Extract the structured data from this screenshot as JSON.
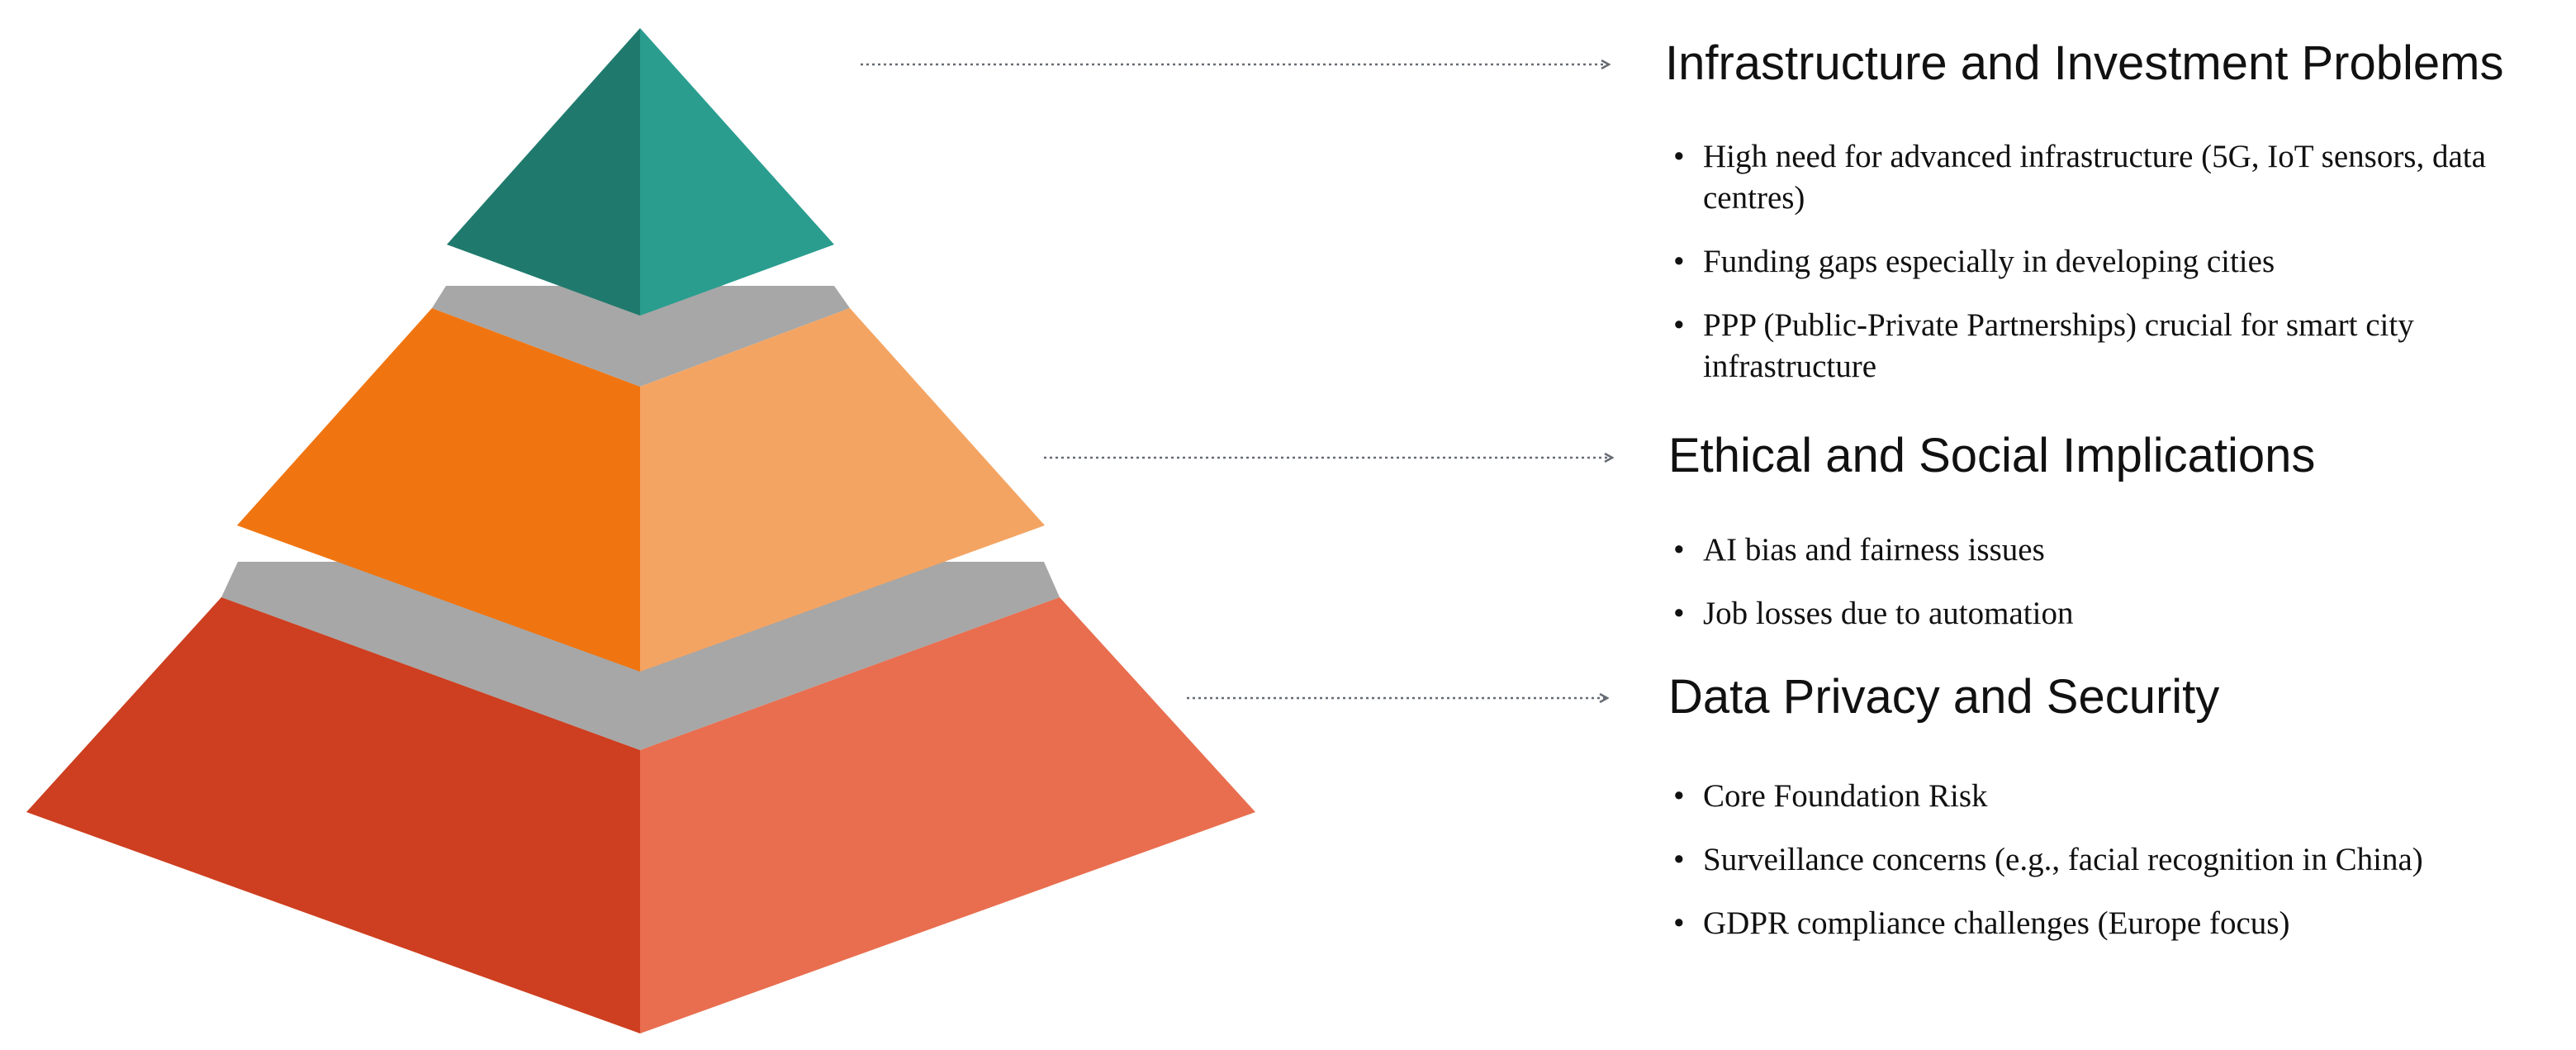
{
  "colors": {
    "apex_left": "#1f7a6d",
    "apex_right": "#2a9d8f",
    "middle_left": "#f07511",
    "middle_right": "#f4a462",
    "base_left": "#cd3f20",
    "base_right": "#e86e4f",
    "divider": "#a7a7a7",
    "connector": "#666b73"
  },
  "levels": [
    {
      "heading": "Infrastructure and Investment Problems",
      "bullets": [
        "High need for advanced infrastructure (5G, IoT sensors, data centres)",
        "Funding gaps especially in developing cities",
        "PPP (Public-Private Partnerships) crucial for smart city infrastructure"
      ]
    },
    {
      "heading": "Ethical and Social Implications",
      "bullets": [
        "AI bias and fairness issues",
        "Job losses due to automation"
      ]
    },
    {
      "heading": "Data Privacy and Security",
      "bullets": [
        "Core Foundation Risk",
        "Surveillance concerns (e.g., facial recognition in China)",
        "GDPR compliance challenges (Europe focus)"
      ]
    }
  ]
}
